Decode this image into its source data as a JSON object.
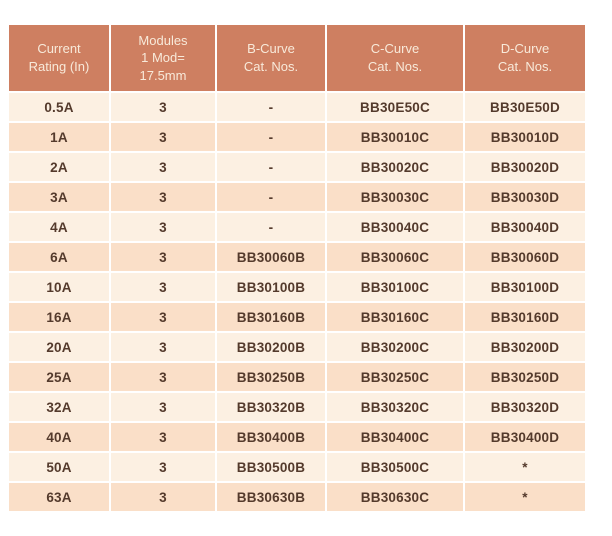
{
  "table": {
    "headers": [
      {
        "id": "current-rating",
        "label": "Current\nRating (In)"
      },
      {
        "id": "modules",
        "label": "Modules\n1 Mod=\n17.5mm"
      },
      {
        "id": "b-curve",
        "label": "B-Curve\nCat. Nos."
      },
      {
        "id": "c-curve",
        "label": "C-Curve\nCat. Nos."
      },
      {
        "id": "d-curve",
        "label": "D-Curve\nCat. Nos."
      }
    ],
    "rows": [
      {
        "cells": [
          "0.5A",
          "3",
          "-",
          "BB30E50C",
          "BB30E50D"
        ]
      },
      {
        "cells": [
          "1A",
          "3",
          "-",
          "BB30010C",
          "BB30010D"
        ]
      },
      {
        "cells": [
          "2A",
          "3",
          "-",
          "BB30020C",
          "BB30020D"
        ]
      },
      {
        "cells": [
          "3A",
          "3",
          "-",
          "BB30030C",
          "BB30030D"
        ]
      },
      {
        "cells": [
          "4A",
          "3",
          "-",
          "BB30040C",
          "BB30040D"
        ]
      },
      {
        "cells": [
          "6A",
          "3",
          "BB30060B",
          "BB30060C",
          "BB30060D"
        ]
      },
      {
        "cells": [
          "10A",
          "3",
          "BB30100B",
          "BB30100C",
          "BB30100D"
        ]
      },
      {
        "cells": [
          "16A",
          "3",
          "BB30160B",
          "BB30160C",
          "BB30160D"
        ]
      },
      {
        "cells": [
          "20A",
          "3",
          "BB30200B",
          "BB30200C",
          "BB30200D"
        ]
      },
      {
        "cells": [
          "25A",
          "3",
          "BB30250B",
          "BB30250C",
          "BB30250D"
        ]
      },
      {
        "cells": [
          "32A",
          "3",
          "BB30320B",
          "BB30320C",
          "BB30320D"
        ]
      },
      {
        "cells": [
          "40A",
          "3",
          "BB30400B",
          "BB30400C",
          "BB30400D"
        ]
      },
      {
        "cells": [
          "50A",
          "3",
          "BB30500B",
          "BB30500C",
          "*"
        ]
      },
      {
        "cells": [
          "63A",
          "3",
          "BB30630B",
          "BB30630C",
          "*"
        ]
      }
    ],
    "column_keys": [
      "rating",
      "modules",
      "b-curve",
      "c-curve",
      "d-curve"
    ]
  },
  "colors": {
    "page_bg": "#ffffff",
    "header_bg": "#ce7f61",
    "header_text": "#f8eada",
    "row_light": "#fcf0e2",
    "row_dark": "#fadfc8",
    "cell_text": "#543a2c"
  }
}
